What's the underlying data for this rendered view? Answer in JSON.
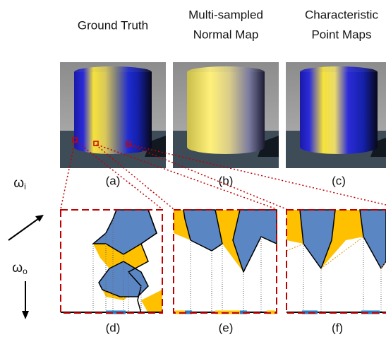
{
  "columns": [
    {
      "title": [
        "Ground Truth"
      ],
      "label": "(a)"
    },
    {
      "title": [
        "Multi-sampled",
        "Normal Map"
      ],
      "label": "(b)"
    },
    {
      "title": [
        "Characteristic",
        "Point Maps"
      ],
      "label": "(c)"
    }
  ],
  "panels": [
    "(d)",
    "(e)",
    "(f)"
  ],
  "directions": [
    {
      "symbol": "ω",
      "subscript": "i"
    },
    {
      "symbol": "ω",
      "subscript": "o"
    }
  ]
}
